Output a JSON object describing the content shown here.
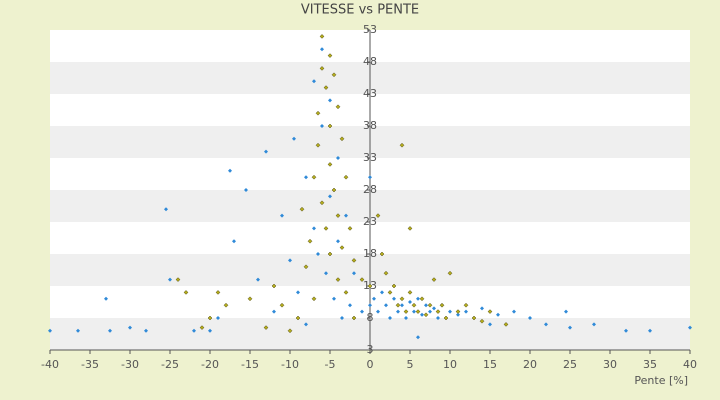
{
  "chart_data": {
    "type": "scatter",
    "title": "VITESSE vs PENTE",
    "x_label": "Pente [%]",
    "xlim": [
      -40,
      40
    ],
    "xticks": [
      -40,
      -35,
      -30,
      -25,
      -20,
      -15,
      -10,
      -5,
      0,
      5,
      10,
      15,
      20,
      25,
      30,
      35,
      40
    ],
    "ylim": [
      3,
      53
    ],
    "yticks": [
      3,
      8,
      13,
      18,
      23,
      28,
      33,
      38,
      43,
      48,
      53
    ],
    "grid": true,
    "series": [
      {
        "color": "#2f8ad8",
        "x": [
          -40,
          -36.5,
          -33,
          -32.5,
          -30,
          -28,
          -25.5,
          -25,
          -22,
          -20,
          -19,
          -17.5,
          -17,
          -15.5,
          -14,
          -13,
          -12,
          -11,
          -10,
          -9.5,
          -9,
          -8,
          -8,
          -7,
          -7,
          -6.5,
          -6,
          -6,
          -5.5,
          -5,
          -5,
          -4.5,
          -4,
          -4,
          -3.5,
          -3,
          -2.5,
          -2,
          -1,
          0,
          0,
          0.5,
          1,
          1.5,
          2,
          2.5,
          3,
          3.5,
          4,
          4.5,
          5,
          5.5,
          6,
          6.5,
          7,
          7.5,
          8,
          8.5,
          9,
          10,
          11,
          12,
          13,
          14,
          15,
          16,
          18,
          20,
          22,
          24.5,
          25,
          28,
          32,
          35,
          40,
          6
        ],
        "values": [
          6,
          6,
          11,
          6,
          6.5,
          6,
          25,
          14,
          6,
          6,
          8,
          31,
          20,
          28,
          14,
          34,
          9,
          24,
          17,
          36,
          12,
          7,
          30,
          22,
          45,
          18,
          50,
          38,
          15,
          42,
          27,
          11,
          33,
          20,
          8,
          24,
          10,
          15,
          9,
          30,
          10,
          11,
          9,
          12,
          10,
          8,
          11,
          9,
          10,
          8,
          10.5,
          9,
          11,
          8.5,
          10,
          9,
          9.5,
          8,
          10,
          9,
          8.5,
          9,
          8,
          9.5,
          7,
          8.5,
          9,
          8,
          7,
          9,
          6.5,
          7,
          6,
          6,
          6.5,
          5
        ]
      },
      {
        "color": "#b5ad1c",
        "x": [
          -24,
          -23,
          -21,
          -20,
          -19,
          -18,
          -15,
          -13,
          -12,
          -11,
          -10,
          -9,
          -8.5,
          -8,
          -7.5,
          -7,
          -7,
          -6.5,
          -6.5,
          -6,
          -6,
          -6,
          -5.5,
          -5.5,
          -5,
          -5,
          -5,
          -5,
          -4.5,
          -4.5,
          -4,
          -4,
          -4,
          -3.5,
          -3.5,
          -3,
          -3,
          -2.5,
          -2,
          -2,
          -1,
          0,
          1,
          1.5,
          2,
          2.5,
          3,
          3.5,
          4,
          4,
          4.5,
          5,
          5,
          5.5,
          6,
          6.5,
          7,
          7.5,
          8,
          8.5,
          9,
          9.5,
          10,
          11,
          12,
          13,
          14,
          15,
          17
        ],
        "values": [
          14,
          12,
          6.5,
          8,
          12,
          10,
          11,
          6.5,
          13,
          10,
          6,
          8,
          25,
          16,
          20,
          30,
          11,
          40,
          35,
          52,
          47,
          26,
          44,
          22,
          49,
          38,
          32,
          18,
          46,
          28,
          41,
          24,
          14,
          36,
          19,
          30,
          12,
          22,
          17,
          8,
          14,
          13,
          24,
          18,
          15,
          12,
          13,
          10,
          35,
          11,
          9,
          22,
          12,
          10,
          9,
          11,
          8.5,
          10,
          14,
          9,
          10,
          8,
          15,
          9,
          10,
          8,
          7.5,
          9,
          7
        ]
      }
    ]
  }
}
